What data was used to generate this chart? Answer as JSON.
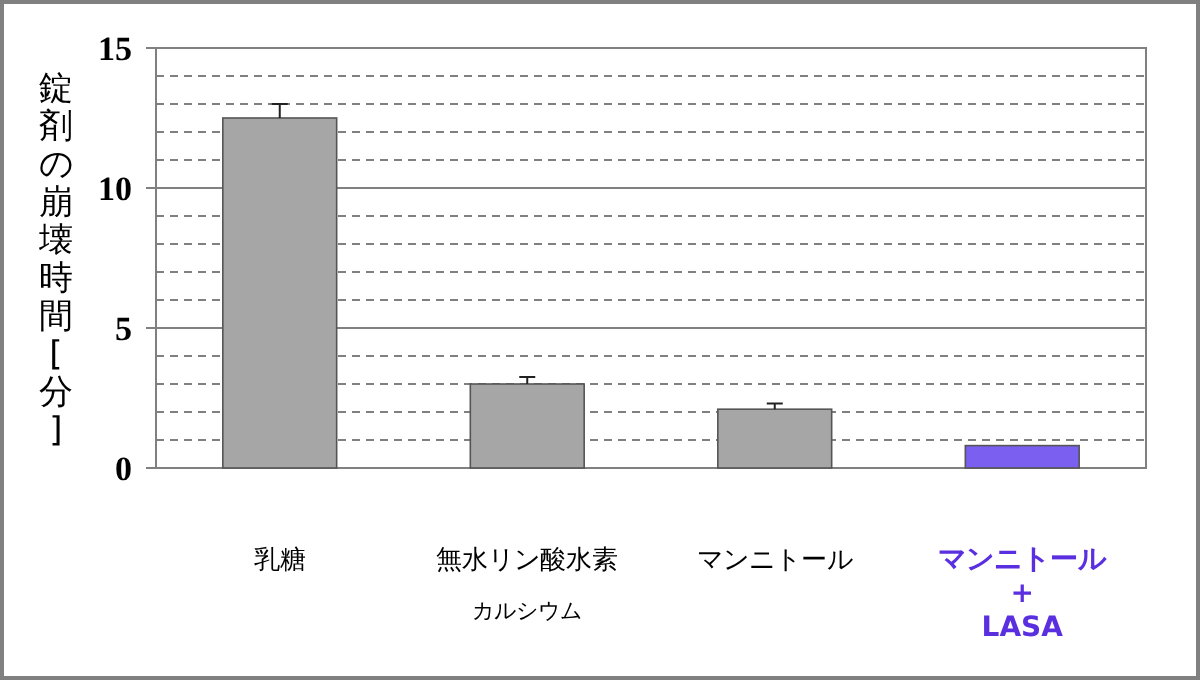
{
  "chart_data": {
    "type": "bar",
    "ylabel": "錠剤の崩壊時間[分]",
    "categories": [
      "乳糖",
      "無水リン酸水素カルシウム",
      "マンニトール",
      "マンニトール\n+\nLASA"
    ],
    "values": [
      12.5,
      3.0,
      2.1,
      0.8
    ],
    "errors": [
      0.5,
      0.25,
      0.2,
      null
    ],
    "colors": [
      "#a6a6a6",
      "#a6a6a6",
      "#a6a6a6",
      "#7a5ff0"
    ],
    "ylim": [
      0,
      15
    ],
    "yticks": [
      0,
      {
        "value": 1,
        "label": null
      },
      {
        "value": 2,
        "label": null
      },
      {
        "value": 3,
        "label": null
      },
      {
        "value": 4,
        "label": null
      },
      5,
      {
        "value": 6,
        "label": null
      },
      {
        "value": 7,
        "label": null
      },
      {
        "value": 8,
        "label": null
      },
      {
        "value": 9,
        "label": null
      },
      10,
      {
        "value": 11,
        "label": null
      },
      {
        "value": 12,
        "label": null
      },
      {
        "value": 13,
        "label": null
      },
      {
        "value": 14,
        "label": null
      },
      15
    ],
    "grid": "y"
  }
}
